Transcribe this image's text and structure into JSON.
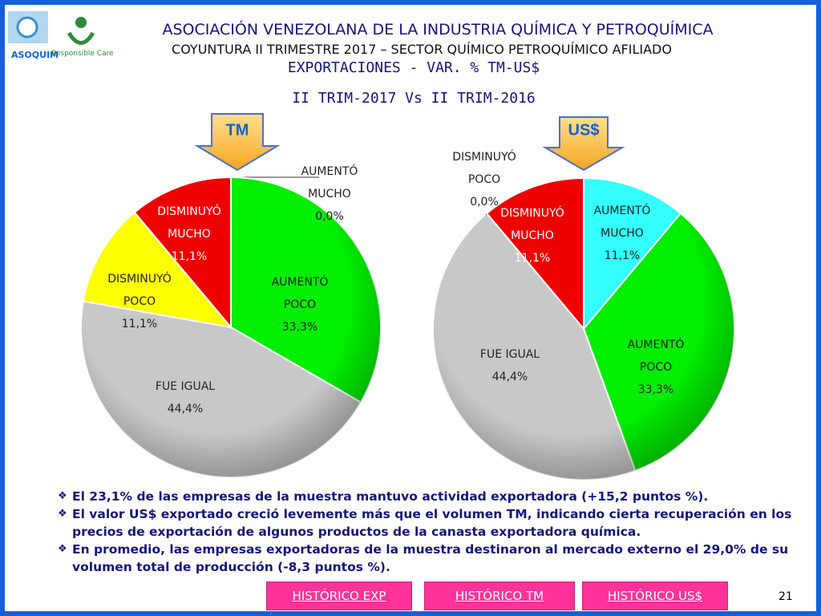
{
  "header": {
    "title": "ASOCIACIÓN VENEZOLANA DE LA INDUSTRIA QUÍMICA Y PETROQUÍMICA",
    "subtitle": "COYUNTURA II TRIMESTRE 2017 – SECTOR QUÍMICO PETROQUÍMICO AFILIADO",
    "section": "EXPORTACIONES - VAR. % TM-US$",
    "period": "II TRIM-2017 Vs II TRIM-2016",
    "logo_left": "ASOQUIM",
    "logo_right": "Responsible Care"
  },
  "chart_data": [
    {
      "type": "pie",
      "title": "TM",
      "categories": [
        "AUMENTÓ MUCHO",
        "AUMENTÓ POCO",
        "FUE IGUAL",
        "DISMINUYÓ POCO",
        "DISMINUYÓ MUCHO"
      ],
      "values": [
        0.0,
        33.3,
        44.4,
        11.1,
        11.1
      ],
      "value_labels": [
        "0,0%",
        "33,3%",
        "44,4%",
        "11,1%",
        "11,1%"
      ],
      "colors": [
        "#33ffff",
        "#00ee00",
        "#c8c8c8",
        "#ffff00",
        "#ee0000"
      ]
    },
    {
      "type": "pie",
      "title": "US$",
      "categories": [
        "AUMENTÓ MUCHO",
        "AUMENTÓ POCO",
        "FUE IGUAL",
        "DISMINUYÓ POCO",
        "DISMINUYÓ MUCHO"
      ],
      "values": [
        11.1,
        33.3,
        44.4,
        0.0,
        11.1
      ],
      "value_labels": [
        "11,1%",
        "33,3%",
        "44,4%",
        "0,0%",
        "11,1%"
      ],
      "colors": [
        "#33ffff",
        "#00ee00",
        "#c8c8c8",
        "#ffff00",
        "#ee0000"
      ]
    }
  ],
  "bullets": [
    "El 23,1% de las empresas de la muestra mantuvo actividad exportadora (+15,2 puntos %).",
    "El valor US$ exportado creció levemente más que el  volumen TM, indicando cierta recuperación en los precios de exportación de algunos productos de la canasta exportadora química.",
    "En promedio, las empresas exportadoras de la muestra destinaron al mercado externo el 29,0% de su volumen total de producción (-8,3 puntos %)."
  ],
  "buttons": [
    "HISTÓRICO EXP",
    "HISTÓRICO TM",
    "HISTÓRICO US$"
  ],
  "page_number": "21"
}
